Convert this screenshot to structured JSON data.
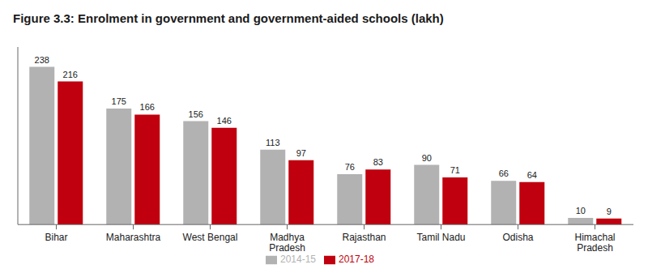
{
  "chart_data": {
    "type": "bar",
    "title": "Figure 3.3: Enrolment in government and government-aided schools (lakh)",
    "categories": [
      "Bihar",
      "Maharashtra",
      "West Bengal",
      "Madhya\nPradesh",
      "Rajasthan",
      "Tamil Nadu",
      "Odisha",
      "Himachal\nPradesh"
    ],
    "series": [
      {
        "name": "2014-15",
        "color": "#b2b2b2",
        "values": [
          238,
          175,
          156,
          113,
          76,
          90,
          66,
          10
        ]
      },
      {
        "name": "2017-18",
        "color": "#c0000e",
        "values": [
          216,
          166,
          146,
          97,
          83,
          71,
          64,
          9
        ]
      }
    ],
    "ylim": [
      0,
      268
    ],
    "grid": false,
    "legend": "bottom",
    "data_labels": true,
    "tick_labels": "x"
  }
}
